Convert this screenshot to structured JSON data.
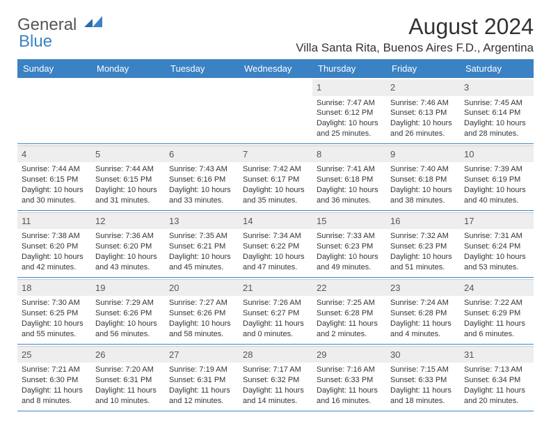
{
  "brand": {
    "part1": "General",
    "part2": "Blue"
  },
  "title": "August 2024",
  "location": "Villa Santa Rita, Buenos Aires F.D., Argentina",
  "colors": {
    "header_band": "#3b82c4",
    "daynum_bg": "#eeeeee",
    "text": "#333333",
    "rule": "#3b82c4"
  },
  "typography": {
    "title_fontsize": 32,
    "location_fontsize": 17,
    "dayheader_fontsize": 13,
    "daynum_fontsize": 13,
    "body_fontsize": 11,
    "font_family": "Arial"
  },
  "day_headers": [
    "Sunday",
    "Monday",
    "Tuesday",
    "Wednesday",
    "Thursday",
    "Friday",
    "Saturday"
  ],
  "weeks": [
    [
      null,
      null,
      null,
      null,
      {
        "n": "1",
        "sunrise": "Sunrise: 7:47 AM",
        "sunset": "Sunset: 6:12 PM",
        "daylight1": "Daylight: 10 hours",
        "daylight2": "and 25 minutes."
      },
      {
        "n": "2",
        "sunrise": "Sunrise: 7:46 AM",
        "sunset": "Sunset: 6:13 PM",
        "daylight1": "Daylight: 10 hours",
        "daylight2": "and 26 minutes."
      },
      {
        "n": "3",
        "sunrise": "Sunrise: 7:45 AM",
        "sunset": "Sunset: 6:14 PM",
        "daylight1": "Daylight: 10 hours",
        "daylight2": "and 28 minutes."
      }
    ],
    [
      {
        "n": "4",
        "sunrise": "Sunrise: 7:44 AM",
        "sunset": "Sunset: 6:15 PM",
        "daylight1": "Daylight: 10 hours",
        "daylight2": "and 30 minutes."
      },
      {
        "n": "5",
        "sunrise": "Sunrise: 7:44 AM",
        "sunset": "Sunset: 6:15 PM",
        "daylight1": "Daylight: 10 hours",
        "daylight2": "and 31 minutes."
      },
      {
        "n": "6",
        "sunrise": "Sunrise: 7:43 AM",
        "sunset": "Sunset: 6:16 PM",
        "daylight1": "Daylight: 10 hours",
        "daylight2": "and 33 minutes."
      },
      {
        "n": "7",
        "sunrise": "Sunrise: 7:42 AM",
        "sunset": "Sunset: 6:17 PM",
        "daylight1": "Daylight: 10 hours",
        "daylight2": "and 35 minutes."
      },
      {
        "n": "8",
        "sunrise": "Sunrise: 7:41 AM",
        "sunset": "Sunset: 6:18 PM",
        "daylight1": "Daylight: 10 hours",
        "daylight2": "and 36 minutes."
      },
      {
        "n": "9",
        "sunrise": "Sunrise: 7:40 AM",
        "sunset": "Sunset: 6:18 PM",
        "daylight1": "Daylight: 10 hours",
        "daylight2": "and 38 minutes."
      },
      {
        "n": "10",
        "sunrise": "Sunrise: 7:39 AM",
        "sunset": "Sunset: 6:19 PM",
        "daylight1": "Daylight: 10 hours",
        "daylight2": "and 40 minutes."
      }
    ],
    [
      {
        "n": "11",
        "sunrise": "Sunrise: 7:38 AM",
        "sunset": "Sunset: 6:20 PM",
        "daylight1": "Daylight: 10 hours",
        "daylight2": "and 42 minutes."
      },
      {
        "n": "12",
        "sunrise": "Sunrise: 7:36 AM",
        "sunset": "Sunset: 6:20 PM",
        "daylight1": "Daylight: 10 hours",
        "daylight2": "and 43 minutes."
      },
      {
        "n": "13",
        "sunrise": "Sunrise: 7:35 AM",
        "sunset": "Sunset: 6:21 PM",
        "daylight1": "Daylight: 10 hours",
        "daylight2": "and 45 minutes."
      },
      {
        "n": "14",
        "sunrise": "Sunrise: 7:34 AM",
        "sunset": "Sunset: 6:22 PM",
        "daylight1": "Daylight: 10 hours",
        "daylight2": "and 47 minutes."
      },
      {
        "n": "15",
        "sunrise": "Sunrise: 7:33 AM",
        "sunset": "Sunset: 6:23 PM",
        "daylight1": "Daylight: 10 hours",
        "daylight2": "and 49 minutes."
      },
      {
        "n": "16",
        "sunrise": "Sunrise: 7:32 AM",
        "sunset": "Sunset: 6:23 PM",
        "daylight1": "Daylight: 10 hours",
        "daylight2": "and 51 minutes."
      },
      {
        "n": "17",
        "sunrise": "Sunrise: 7:31 AM",
        "sunset": "Sunset: 6:24 PM",
        "daylight1": "Daylight: 10 hours",
        "daylight2": "and 53 minutes."
      }
    ],
    [
      {
        "n": "18",
        "sunrise": "Sunrise: 7:30 AM",
        "sunset": "Sunset: 6:25 PM",
        "daylight1": "Daylight: 10 hours",
        "daylight2": "and 55 minutes."
      },
      {
        "n": "19",
        "sunrise": "Sunrise: 7:29 AM",
        "sunset": "Sunset: 6:26 PM",
        "daylight1": "Daylight: 10 hours",
        "daylight2": "and 56 minutes."
      },
      {
        "n": "20",
        "sunrise": "Sunrise: 7:27 AM",
        "sunset": "Sunset: 6:26 PM",
        "daylight1": "Daylight: 10 hours",
        "daylight2": "and 58 minutes."
      },
      {
        "n": "21",
        "sunrise": "Sunrise: 7:26 AM",
        "sunset": "Sunset: 6:27 PM",
        "daylight1": "Daylight: 11 hours",
        "daylight2": "and 0 minutes."
      },
      {
        "n": "22",
        "sunrise": "Sunrise: 7:25 AM",
        "sunset": "Sunset: 6:28 PM",
        "daylight1": "Daylight: 11 hours",
        "daylight2": "and 2 minutes."
      },
      {
        "n": "23",
        "sunrise": "Sunrise: 7:24 AM",
        "sunset": "Sunset: 6:28 PM",
        "daylight1": "Daylight: 11 hours",
        "daylight2": "and 4 minutes."
      },
      {
        "n": "24",
        "sunrise": "Sunrise: 7:22 AM",
        "sunset": "Sunset: 6:29 PM",
        "daylight1": "Daylight: 11 hours",
        "daylight2": "and 6 minutes."
      }
    ],
    [
      {
        "n": "25",
        "sunrise": "Sunrise: 7:21 AM",
        "sunset": "Sunset: 6:30 PM",
        "daylight1": "Daylight: 11 hours",
        "daylight2": "and 8 minutes."
      },
      {
        "n": "26",
        "sunrise": "Sunrise: 7:20 AM",
        "sunset": "Sunset: 6:31 PM",
        "daylight1": "Daylight: 11 hours",
        "daylight2": "and 10 minutes."
      },
      {
        "n": "27",
        "sunrise": "Sunrise: 7:19 AM",
        "sunset": "Sunset: 6:31 PM",
        "daylight1": "Daylight: 11 hours",
        "daylight2": "and 12 minutes."
      },
      {
        "n": "28",
        "sunrise": "Sunrise: 7:17 AM",
        "sunset": "Sunset: 6:32 PM",
        "daylight1": "Daylight: 11 hours",
        "daylight2": "and 14 minutes."
      },
      {
        "n": "29",
        "sunrise": "Sunrise: 7:16 AM",
        "sunset": "Sunset: 6:33 PM",
        "daylight1": "Daylight: 11 hours",
        "daylight2": "and 16 minutes."
      },
      {
        "n": "30",
        "sunrise": "Sunrise: 7:15 AM",
        "sunset": "Sunset: 6:33 PM",
        "daylight1": "Daylight: 11 hours",
        "daylight2": "and 18 minutes."
      },
      {
        "n": "31",
        "sunrise": "Sunrise: 7:13 AM",
        "sunset": "Sunset: 6:34 PM",
        "daylight1": "Daylight: 11 hours",
        "daylight2": "and 20 minutes."
      }
    ]
  ]
}
